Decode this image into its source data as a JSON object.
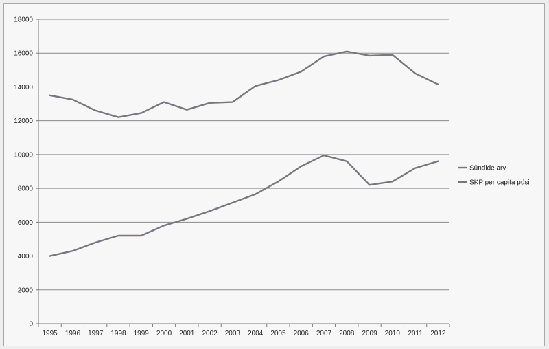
{
  "chart_data": {
    "type": "line",
    "title": "",
    "xlabel": "",
    "ylabel": "",
    "ylim": [
      0,
      18000
    ],
    "yticks": [
      0,
      2000,
      4000,
      6000,
      8000,
      10000,
      12000,
      14000,
      16000,
      18000
    ],
    "grid": "horizontal",
    "legend_position": "right",
    "categories": [
      "1995",
      "1996",
      "1997",
      "1998",
      "1999",
      "2000",
      "2001",
      "2002",
      "2003",
      "2004",
      "2005",
      "2006",
      "2007",
      "2008",
      "2009",
      "2010",
      "2011",
      "2012"
    ],
    "series": [
      {
        "name": "Sündide arv",
        "color": "#7a7680",
        "values": [
          13500,
          13250,
          12600,
          12200,
          12450,
          13100,
          12650,
          13050,
          13100,
          14050,
          14400,
          14900,
          15800,
          16100,
          15850,
          15900,
          14800,
          14150
        ]
      },
      {
        "name": "SKP per capita püsi",
        "color": "#7a7680",
        "values": [
          4000,
          4300,
          4800,
          5200,
          5200,
          5800,
          6200,
          6650,
          7150,
          7650,
          8400,
          9300,
          9950,
          9600,
          8200,
          8400,
          9200,
          9600
        ]
      }
    ]
  }
}
